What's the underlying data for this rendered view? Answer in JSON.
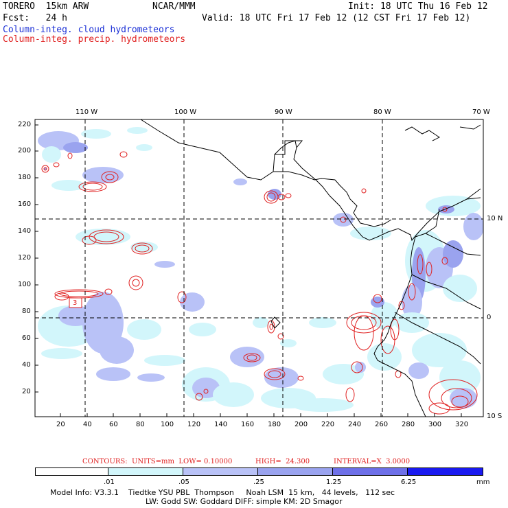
{
  "header": {
    "model": "TORERO  15km ARW",
    "center": "NCAR/MMM",
    "init": "Init: 18 UTC Thu 16 Feb 12",
    "fcst": "Fcst:   24 h",
    "valid": "Valid: 18 UTC Fri 17 Feb 12 (12 CST Fri 17 Feb 12)",
    "field_cloud": "Column-integ. cloud hydrometeors",
    "field_precip": "Column-integ. precip. hydrometeors"
  },
  "colors": {
    "cloud_text": "#1a2fd6",
    "precip_text": "#e02020",
    "contour": "#e02020"
  },
  "axes": {
    "top_lon": [
      "110 W",
      "100 W",
      "90 W",
      "80 W",
      "70 W"
    ],
    "right_lat": [
      "10 N",
      "0",
      "10 S"
    ],
    "left_y": [
      "220",
      "200",
      "180",
      "160",
      "140",
      "120",
      "100",
      "80",
      "60",
      "40",
      "20"
    ],
    "bottom_x": [
      "20",
      "40",
      "60",
      "80",
      "100",
      "120",
      "140",
      "160",
      "180",
      "200",
      "220",
      "240",
      "260",
      "280",
      "300",
      "320"
    ]
  },
  "contour_label": "3",
  "contour_info": {
    "units": "CONTOURS:  UNITS=mm  LOW= 0.10000",
    "high": "HIGH=  24.300",
    "interval": "INTERVAL=X  3.0000"
  },
  "legend": {
    "ticks": [
      ".01",
      ".05",
      ".25",
      "1.25",
      "6.25"
    ],
    "unit": "mm",
    "colors": [
      "#ffffff",
      "#d2f6fb",
      "#b9c2f7",
      "#9aa3ef",
      "#6e70e8",
      "#3c3cdc",
      "#1a1af0"
    ]
  },
  "footer": {
    "line1": "Model Info: V3.3.1    Tiedtke YSU PBL  Thompson     Noah LSM  15 km,   44 levels,   112 sec",
    "line2": "LW: Godd SW: Goddard DIFF: simple KM: 2D Smagor"
  }
}
